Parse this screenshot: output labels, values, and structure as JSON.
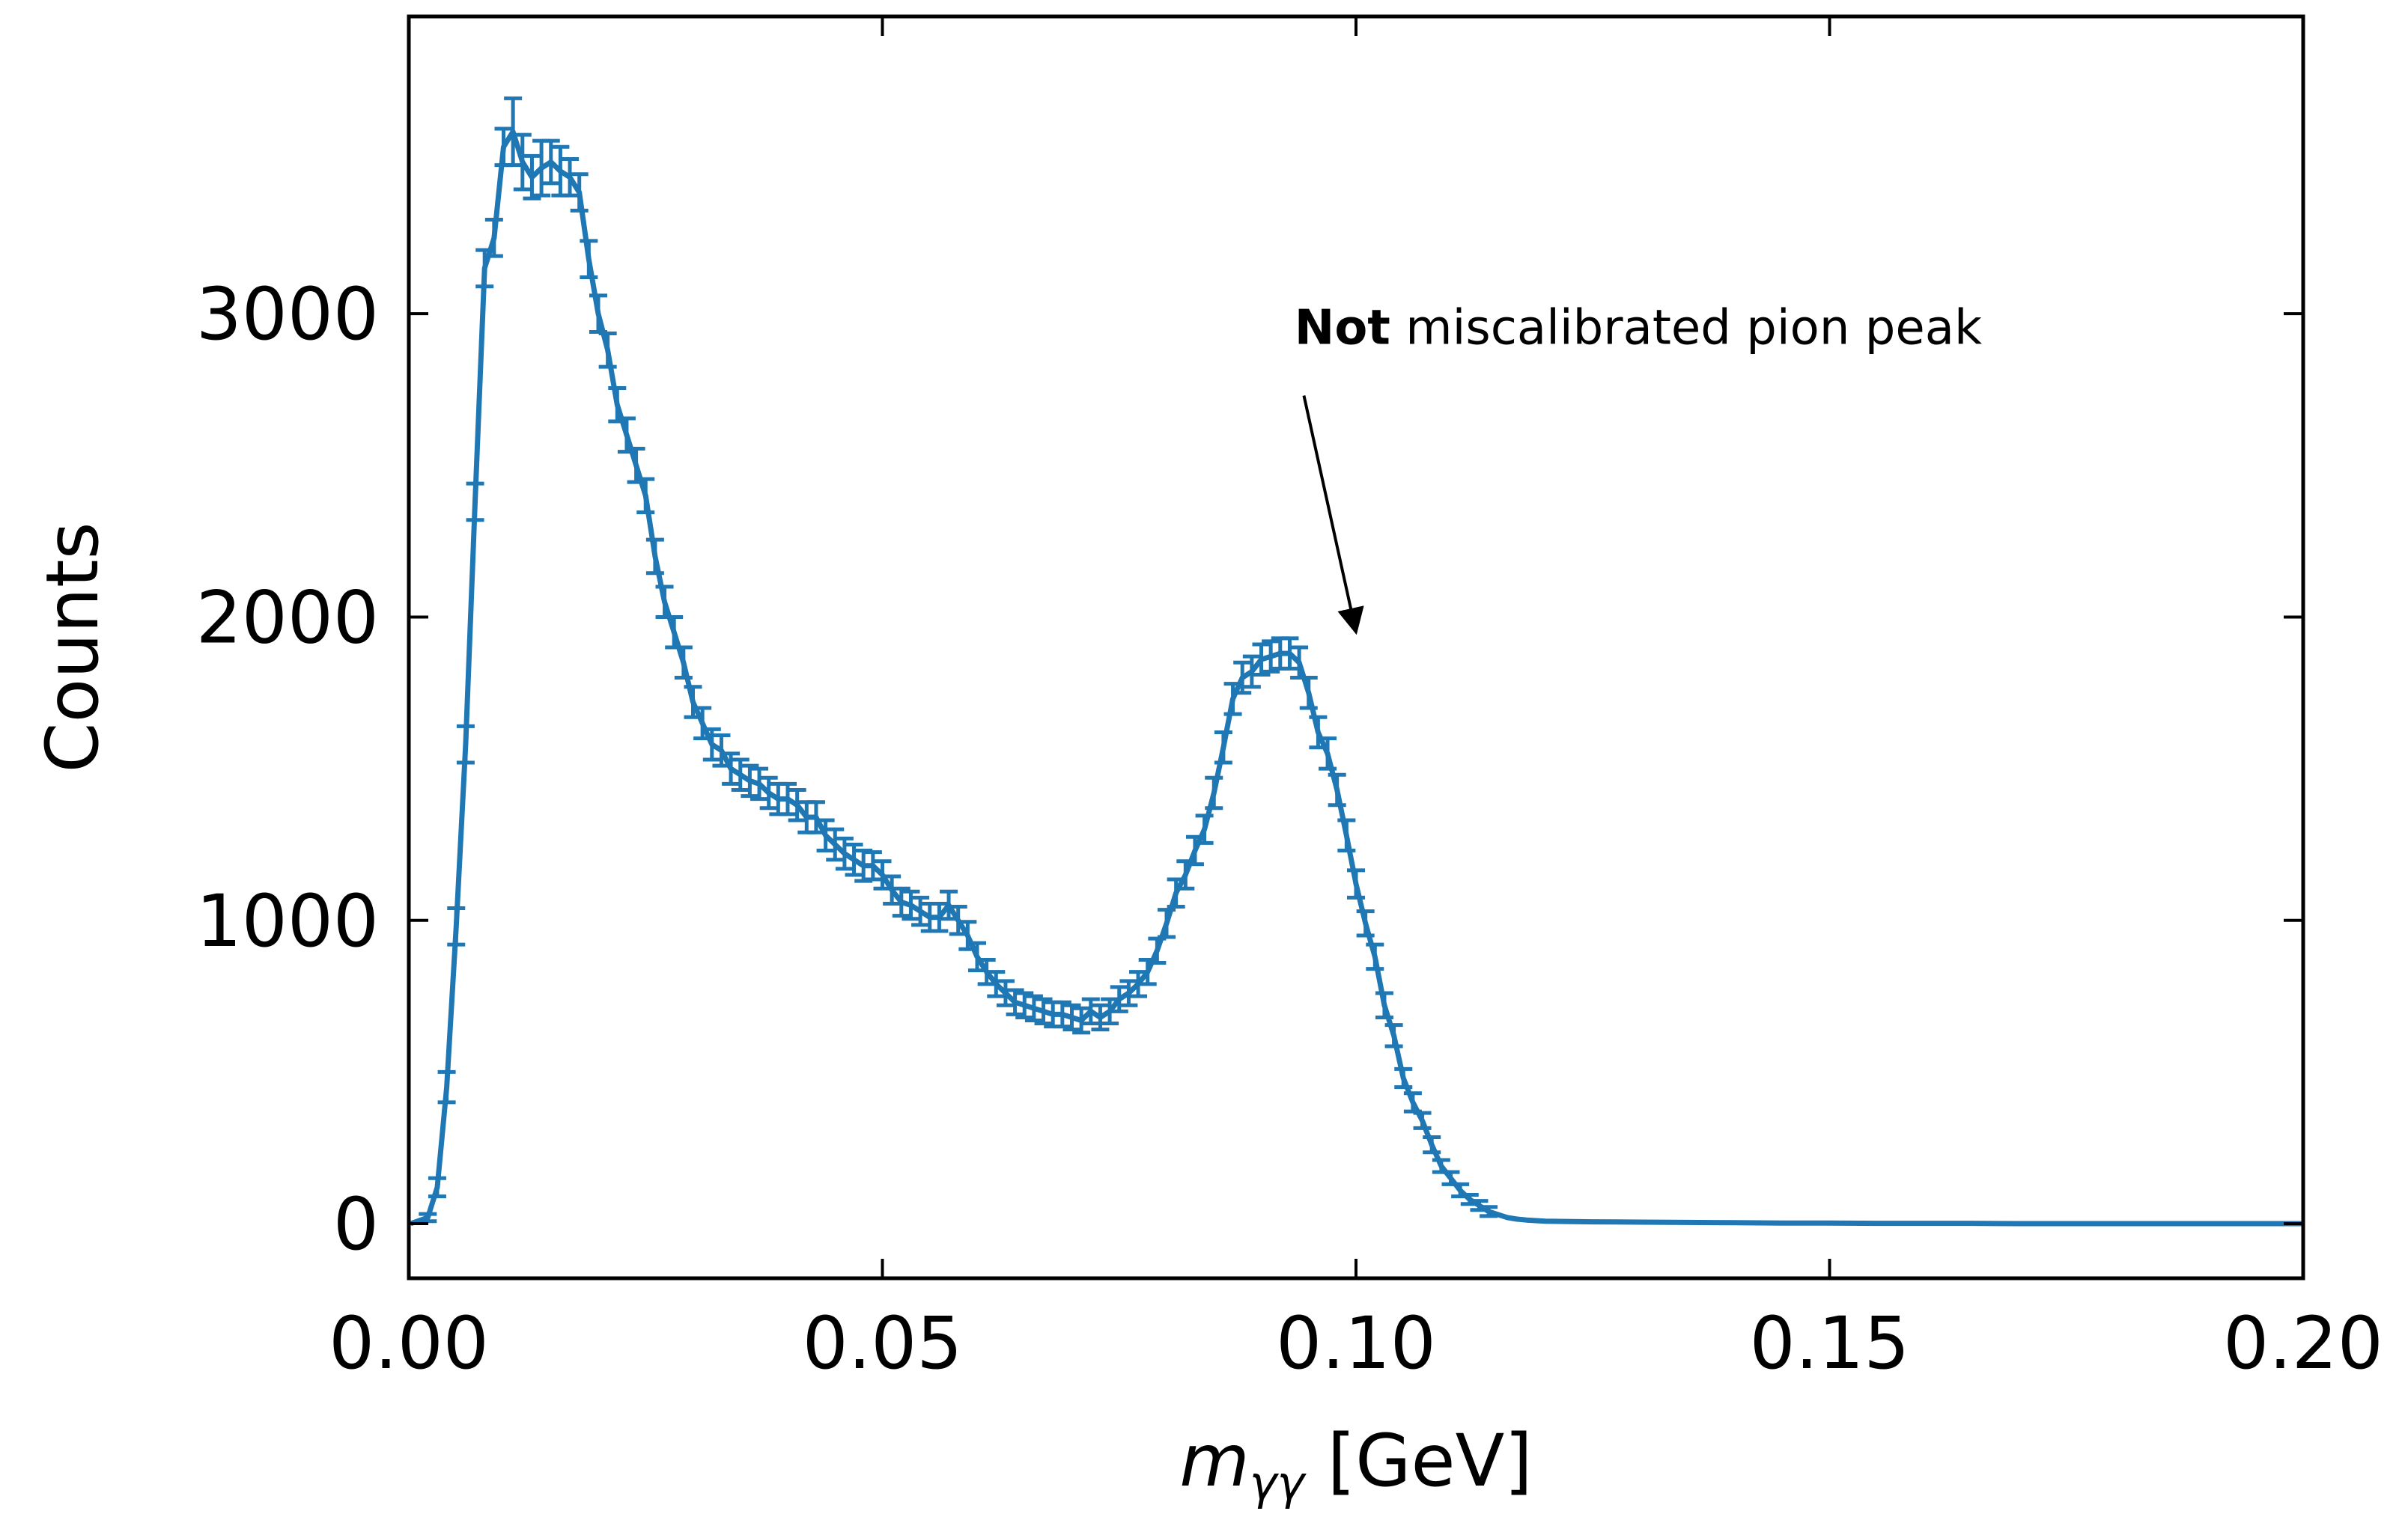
{
  "chart_data": {
    "type": "line",
    "title": "",
    "xlabel": {
      "main": "m",
      "sub": "γγ",
      "unit": " [GeV]"
    },
    "ylabel": "Counts",
    "xlim": [
      0.0,
      0.2
    ],
    "ylim": [
      -180,
      3980
    ],
    "x_ticks": [
      "0.00",
      "0.05",
      "0.10",
      "0.15",
      "0.20"
    ],
    "x_tick_values": [
      0.0,
      0.05,
      0.1,
      0.15,
      0.2
    ],
    "y_ticks": [
      "0",
      "1000",
      "2000",
      "3000"
    ],
    "y_tick_values": [
      0,
      1000,
      2000,
      3000
    ],
    "grid": false,
    "series_color": "#1f77b4",
    "annotation": {
      "bold": "Not",
      "text": " miscalibrated pion peak",
      "text_at": [
        0.0935,
        2900
      ],
      "arrow_from": [
        0.0945,
        2730
      ],
      "arrow_to": [
        0.1,
        1950
      ]
    },
    "series": [
      {
        "x": [
          0.0002,
          0.002,
          0.003,
          0.004,
          0.005,
          0.006,
          0.007,
          0.008,
          0.009,
          0.01,
          0.011,
          0.012,
          0.013,
          0.014,
          0.015,
          0.016,
          0.017,
          0.018,
          0.019,
          0.02,
          0.021,
          0.022,
          0.023,
          0.024,
          0.025,
          0.026,
          0.027,
          0.028,
          0.029,
          0.03,
          0.031,
          0.032,
          0.033,
          0.034,
          0.035,
          0.036,
          0.037,
          0.038,
          0.039,
          0.04,
          0.041,
          0.042,
          0.043,
          0.044,
          0.045,
          0.046,
          0.047,
          0.048,
          0.049,
          0.05,
          0.051,
          0.052,
          0.053,
          0.054,
          0.055,
          0.056,
          0.057,
          0.058,
          0.059,
          0.06,
          0.061,
          0.062,
          0.063,
          0.064,
          0.065,
          0.066,
          0.067,
          0.068,
          0.069,
          0.07,
          0.071,
          0.072,
          0.073,
          0.074,
          0.075,
          0.076,
          0.077,
          0.078,
          0.079,
          0.08,
          0.081,
          0.082,
          0.083,
          0.084,
          0.085,
          0.086,
          0.087,
          0.088,
          0.089,
          0.09,
          0.091,
          0.092,
          0.093,
          0.094,
          0.095,
          0.096,
          0.097,
          0.098,
          0.099,
          0.1,
          0.101,
          0.102,
          0.103,
          0.104,
          0.105,
          0.106,
          0.107,
          0.108,
          0.109,
          0.11,
          0.111,
          0.112,
          0.113,
          0.114,
          0.115,
          0.116,
          0.117,
          0.118,
          0.119,
          0.12,
          0.125,
          0.13,
          0.135,
          0.14,
          0.145,
          0.15,
          0.155,
          0.16,
          0.165,
          0.17,
          0.175,
          0.18,
          0.185,
          0.19,
          0.195,
          0.2
        ],
        "y": [
          0,
          20,
          120,
          450,
          980,
          1580,
          2380,
          3150,
          3250,
          3550,
          3600,
          3500,
          3450,
          3480,
          3500,
          3470,
          3450,
          3400,
          3180,
          3000,
          2880,
          2700,
          2600,
          2500,
          2400,
          2200,
          2050,
          1950,
          1850,
          1720,
          1650,
          1580,
          1560,
          1500,
          1480,
          1460,
          1450,
          1420,
          1400,
          1400,
          1380,
          1340,
          1340,
          1280,
          1250,
          1220,
          1200,
          1180,
          1180,
          1150,
          1100,
          1060,
          1050,
          1030,
          1010,
          1010,
          1050,
          1000,
          950,
          880,
          830,
          790,
          760,
          730,
          720,
          710,
          700,
          690,
          690,
          680,
          670,
          700,
          680,
          700,
          740,
          760,
          790,
          830,
          900,
          990,
          1090,
          1150,
          1230,
          1300,
          1420,
          1570,
          1730,
          1800,
          1820,
          1860,
          1870,
          1880,
          1880,
          1850,
          1750,
          1620,
          1550,
          1430,
          1280,
          1120,
          990,
          880,
          720,
          620,
          480,
          400,
          340,
          260,
          190,
          150,
          110,
          80,
          60,
          40,
          30,
          20,
          15,
          12,
          10,
          8,
          6,
          5,
          4,
          3,
          2,
          2,
          1,
          1,
          1,
          0,
          0,
          0,
          0,
          0,
          0,
          0
        ],
        "err": [
          5,
          12,
          30,
          50,
          60,
          60,
          60,
          60,
          60,
          60,
          110,
          90,
          70,
          90,
          70,
          80,
          60,
          60,
          60,
          60,
          55,
          55,
          55,
          55,
          55,
          55,
          50,
          50,
          50,
          50,
          50,
          50,
          50,
          50,
          50,
          50,
          50,
          50,
          50,
          50,
          50,
          50,
          50,
          50,
          50,
          50,
          50,
          50,
          45,
          45,
          45,
          45,
          45,
          45,
          45,
          45,
          45,
          45,
          45,
          45,
          40,
          40,
          40,
          40,
          40,
          40,
          40,
          40,
          40,
          40,
          40,
          40,
          40,
          40,
          40,
          40,
          40,
          40,
          40,
          45,
          45,
          45,
          45,
          45,
          50,
          50,
          50,
          50,
          50,
          50,
          50,
          50,
          50,
          50,
          50,
          50,
          50,
          50,
          50,
          45,
          40,
          40,
          40,
          35,
          30,
          30,
          25,
          25,
          20,
          20,
          20,
          15,
          15,
          15,
          10,
          10,
          10,
          8,
          8,
          8,
          5,
          5,
          5,
          5,
          5,
          5,
          5,
          5,
          5,
          5,
          5,
          5,
          5,
          5,
          5,
          5
        ]
      }
    ]
  }
}
